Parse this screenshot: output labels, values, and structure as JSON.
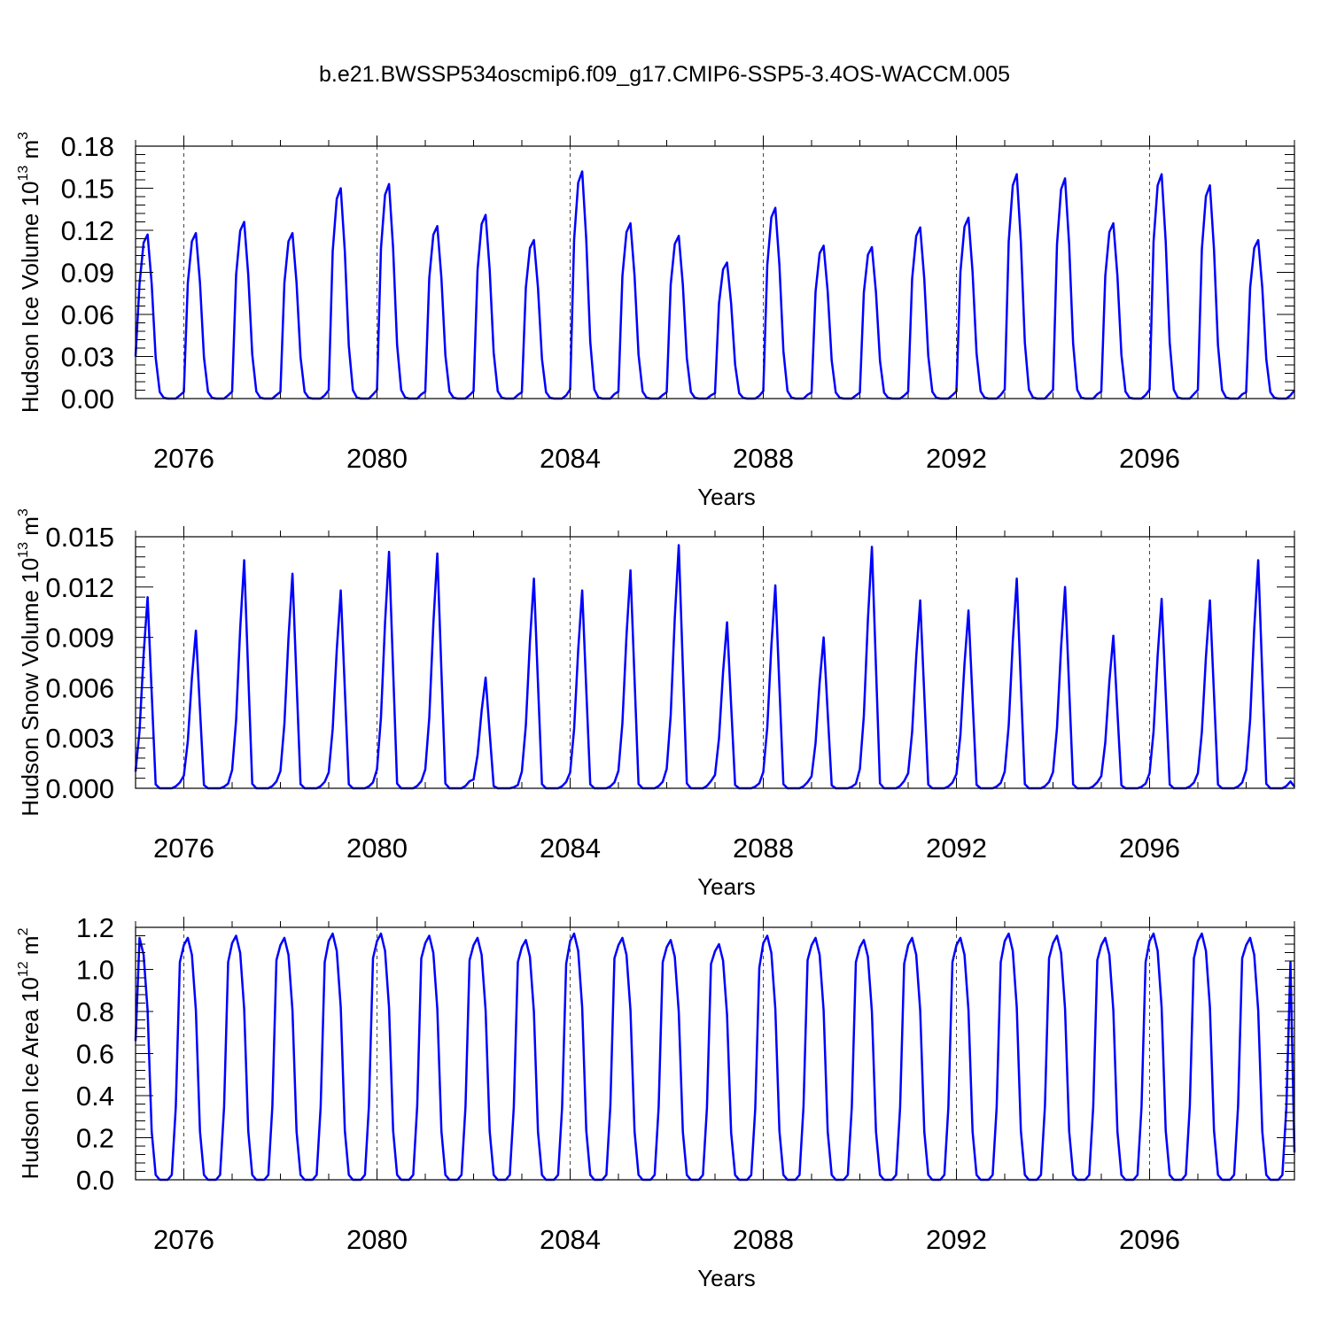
{
  "figure_title": "b.e21.BWSSP534oscmip6.f09_g17.CMIP6-SSP5-3.4OS-WACCM.005",
  "chart_data": [
    {
      "type": "line",
      "ylabel_main": "Hudson Ice Volume 10",
      "ylabel_exp": "13",
      "ylabel_unit": "m",
      "ylabel_unit_exp": "3",
      "xlabel": "Years",
      "xlim": [
        2075,
        2099
      ],
      "ylim": [
        0,
        0.18
      ],
      "xticks": [
        2076,
        2080,
        2084,
        2088,
        2092,
        2096
      ],
      "xtick_labels": [
        "2076",
        "2080",
        "2084",
        "2088",
        "2092",
        "2096"
      ],
      "yticks": [
        0,
        0.03,
        0.06,
        0.09,
        0.12,
        0.15,
        0.18
      ],
      "ytick_labels": [
        "0.00",
        "0.03",
        "0.06",
        "0.09",
        "0.12",
        "0.15",
        "0.18"
      ],
      "series": [
        {
          "name": "Hudson Ice Volume",
          "color": "#0000ff",
          "peaks": [
            0.117,
            0.118,
            0.126,
            0.118,
            0.15,
            0.153,
            0.123,
            0.131,
            0.113,
            0.162,
            0.125,
            0.116,
            0.097,
            0.136,
            0.109,
            0.108,
            0.122,
            0.129,
            0.16,
            0.157,
            0.125,
            0.16,
            0.152,
            0.113
          ],
          "profile": [
            0.04,
            0.7,
            0.95,
            1.0,
            0.7,
            0.25,
            0.04,
            0.005,
            0.0,
            0.0,
            0.0,
            0.02
          ],
          "start_value": 0.03,
          "end_value": 0.006
        }
      ]
    },
    {
      "type": "line",
      "ylabel_main": "Hudson Snow Volume 10",
      "ylabel_exp": "13",
      "ylabel_unit": "m",
      "ylabel_unit_exp": "3",
      "xlabel": "Years",
      "xlim": [
        2075,
        2099
      ],
      "ylim": [
        0,
        0.015
      ],
      "xticks": [
        2076,
        2080,
        2084,
        2088,
        2092,
        2096
      ],
      "xtick_labels": [
        "2076",
        "2080",
        "2084",
        "2088",
        "2092",
        "2096"
      ],
      "yticks": [
        0,
        0.003,
        0.006,
        0.009,
        0.012,
        0.015
      ],
      "ytick_labels": [
        "0.000",
        "0.003",
        "0.006",
        "0.009",
        "0.012",
        "0.015"
      ],
      "series": [
        {
          "name": "Hudson Snow Volume",
          "color": "#0000ff",
          "peaks": [
            0.0114,
            0.0094,
            0.0136,
            0.0128,
            0.0118,
            0.0141,
            0.014,
            0.0066,
            0.0125,
            0.0118,
            0.013,
            0.0145,
            0.0099,
            0.0121,
            0.009,
            0.0144,
            0.0112,
            0.0106,
            0.0125,
            0.012,
            0.0091,
            0.0113,
            0.0112,
            0.0136
          ],
          "profile": [
            0.08,
            0.3,
            0.7,
            1.0,
            0.5,
            0.02,
            0.0,
            0.0,
            0.0,
            0.0,
            0.01,
            0.03
          ],
          "start_value": 0.001,
          "end_value": 0.0001
        }
      ]
    },
    {
      "type": "line",
      "ylabel_main": "Hudson Ice Area 10",
      "ylabel_exp": "12",
      "ylabel_unit": "m",
      "ylabel_unit_exp": "2",
      "xlabel": "Years",
      "xlim": [
        2075,
        2099
      ],
      "ylim": [
        0,
        1.2
      ],
      "xticks": [
        2076,
        2080,
        2084,
        2088,
        2092,
        2096
      ],
      "xtick_labels": [
        "2076",
        "2080",
        "2084",
        "2088",
        "2092",
        "2096"
      ],
      "yticks": [
        0,
        0.2,
        0.4,
        0.6,
        0.8,
        1.0,
        1.2
      ],
      "ytick_labels": [
        "0.0",
        "0.2",
        "0.4",
        "0.6",
        "0.8",
        "1.0",
        "1.2"
      ],
      "series": [
        {
          "name": "Hudson Ice Area",
          "color": "#0000ff",
          "peaks": [
            1.15,
            1.15,
            1.16,
            1.15,
            1.17,
            1.17,
            1.16,
            1.15,
            1.14,
            1.17,
            1.15,
            1.14,
            1.12,
            1.16,
            1.15,
            1.14,
            1.15,
            1.15,
            1.17,
            1.16,
            1.15,
            1.17,
            1.17,
            1.15
          ],
          "profile": [
            0.97,
            1.0,
            0.93,
            0.7,
            0.2,
            0.02,
            0.0,
            0.0,
            0.0,
            0.02,
            0.3,
            0.9
          ],
          "start_value": 0.66,
          "end_value": 0.13
        }
      ]
    }
  ]
}
